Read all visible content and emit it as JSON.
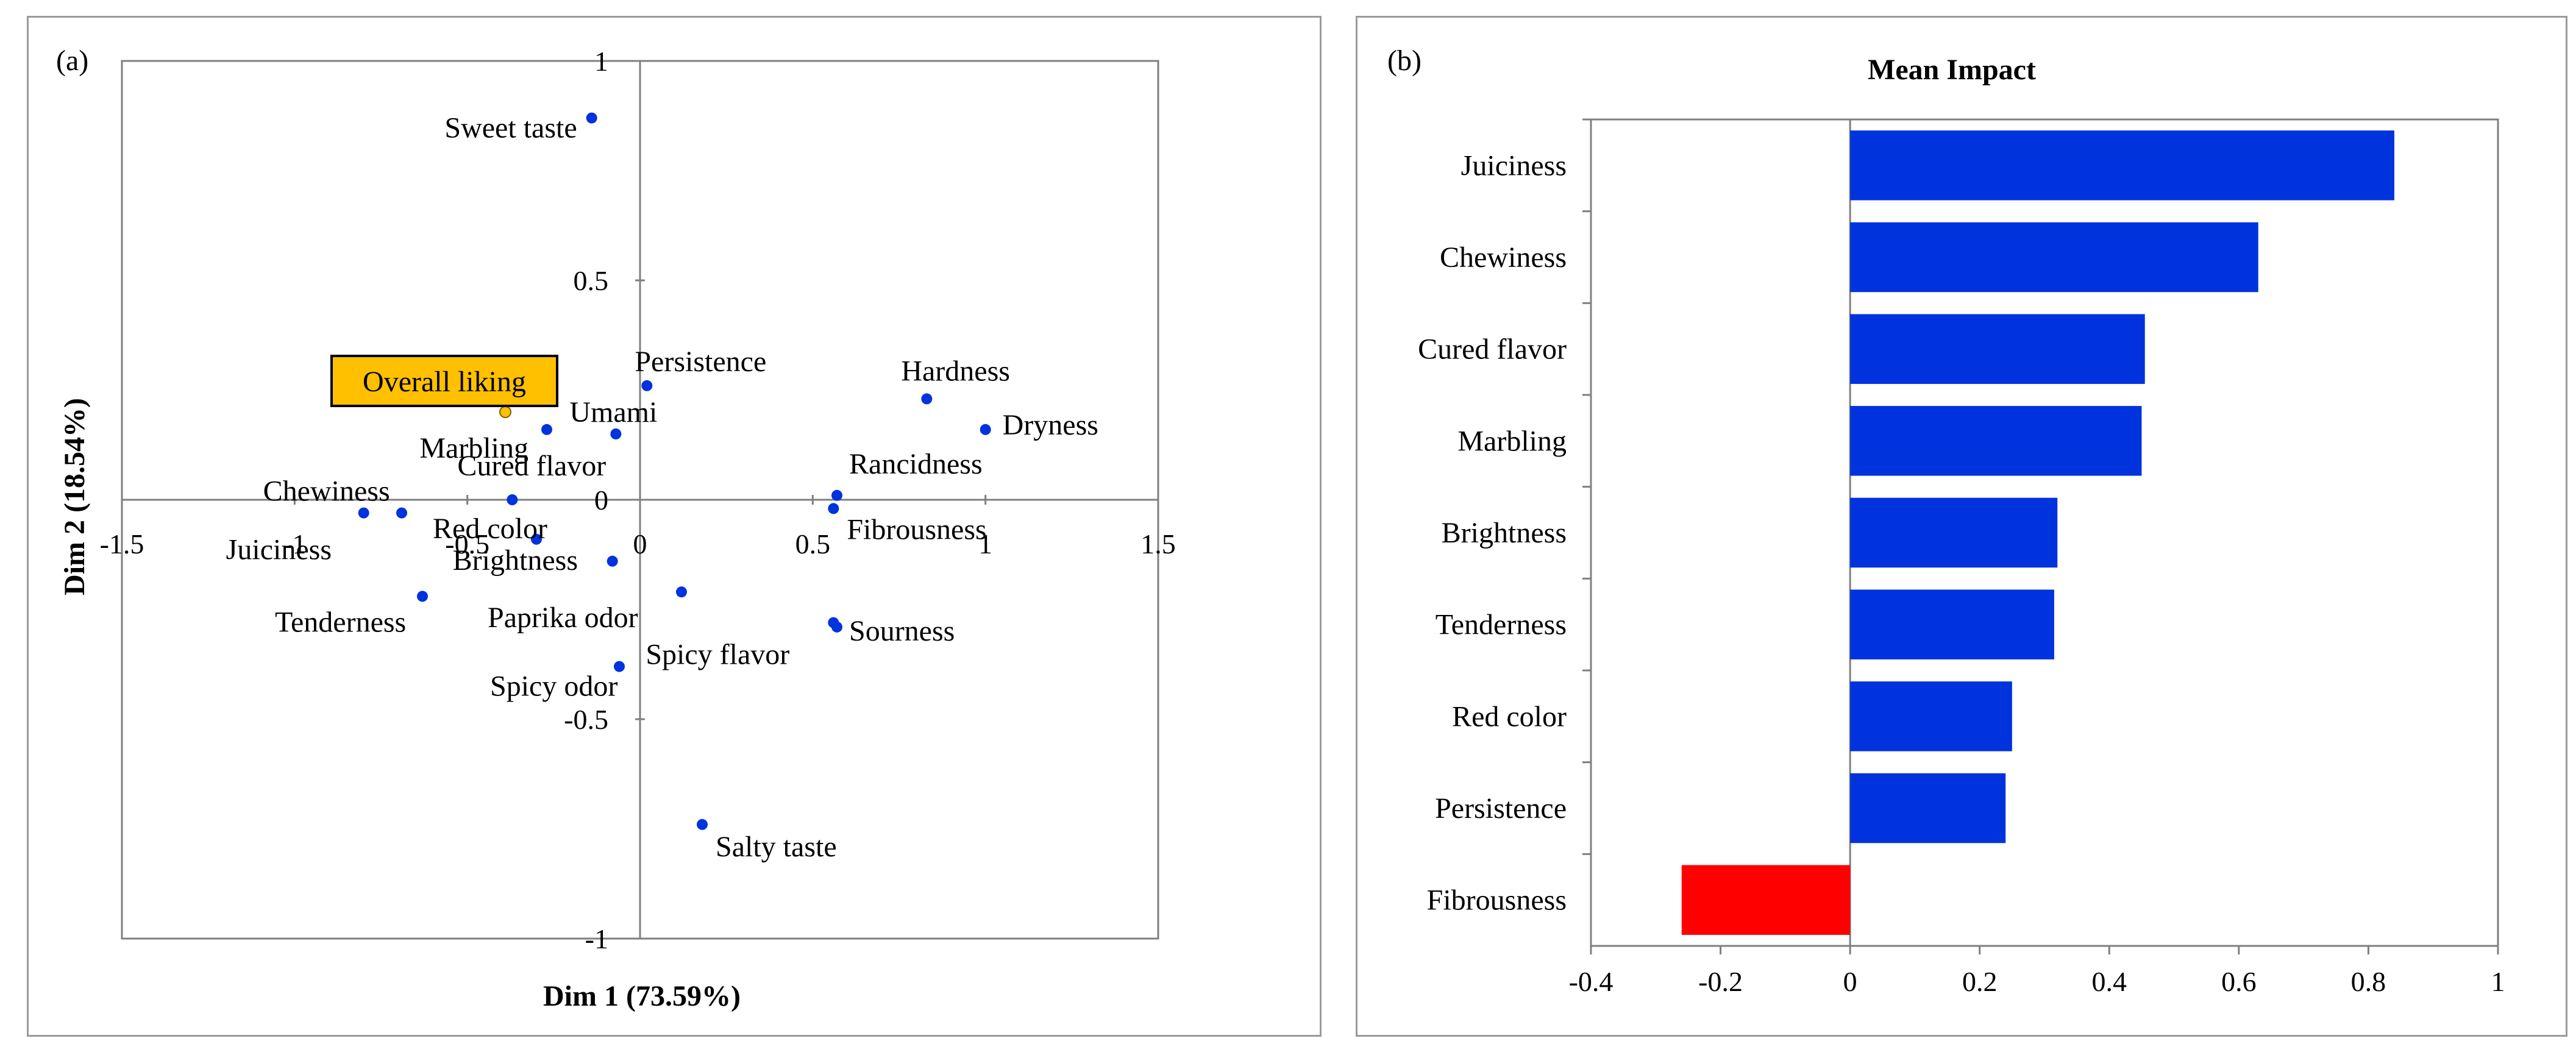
{
  "chart_data": [
    {
      "panel": "(a)",
      "type": "scatter",
      "title": "",
      "xlabel": "Dim 1 (73.59%)",
      "ylabel": "Dim 2 (18.54%)",
      "xlim": [
        -1.5,
        1.5
      ],
      "ylim": [
        -1,
        1
      ],
      "xticks": [
        "-1.5",
        "-1",
        "-0.5",
        "0",
        "0.5",
        "1",
        "1.5"
      ],
      "yticks": [
        "1",
        "0.5",
        "0",
        "-0.5",
        "-1"
      ],
      "grid": false,
      "highlight_label": "Overall liking",
      "highlight_color": "#FFC000",
      "point_color": "#0033DD",
      "points": [
        {
          "label": "Sweet taste",
          "x": -0.14,
          "y": 0.87
        },
        {
          "label": "Persistence",
          "x": 0.02,
          "y": 0.26
        },
        {
          "label": "Hardness",
          "x": 0.83,
          "y": 0.23
        },
        {
          "label": "Dryness",
          "x": 1.0,
          "y": 0.16
        },
        {
          "label": "Overall liking",
          "x": -0.39,
          "y": 0.2
        },
        {
          "label": "Umami",
          "x": -0.07,
          "y": 0.15
        },
        {
          "label": "Marbling",
          "x": -0.27,
          "y": 0.16
        },
        {
          "label": "Rancidness",
          "x": 0.57,
          "y": 0.01
        },
        {
          "label": "Fibrousness",
          "x": 0.56,
          "y": -0.02
        },
        {
          "label": "Chewiness",
          "x": -0.8,
          "y": -0.03
        },
        {
          "label": "Cured flavor",
          "x": -0.37,
          "y": 0.0
        },
        {
          "label": "Juiciness",
          "x": -0.69,
          "y": -0.03
        },
        {
          "label": "Red color",
          "x": -0.3,
          "y": -0.09
        },
        {
          "label": "Brightness",
          "x": -0.08,
          "y": -0.14
        },
        {
          "label": "Paprika odor",
          "x": 0.12,
          "y": -0.21
        },
        {
          "label": "Spicy flavor",
          "x": 0.56,
          "y": -0.28
        },
        {
          "label": "Sourness",
          "x": 0.57,
          "y": -0.29
        },
        {
          "label": "Tenderness",
          "x": -0.63,
          "y": -0.22
        },
        {
          "label": "Spicy odor",
          "x": -0.06,
          "y": -0.38
        },
        {
          "label": "Salty taste",
          "x": 0.18,
          "y": -0.74
        }
      ]
    },
    {
      "panel": "(b)",
      "type": "bar",
      "orientation": "horizontal",
      "title": "Mean Impact",
      "xlabel": "",
      "ylabel": "",
      "xlim": [
        -0.4,
        1
      ],
      "xticks": [
        "-0.4",
        "-0.2",
        "0",
        "0.2",
        "0.4",
        "0.6",
        "0.8",
        "1"
      ],
      "categories": [
        "Juiciness",
        "Chewiness",
        "Cured flavor",
        "Marbling",
        "Brightness",
        "Tenderness",
        "Red color",
        "Persistence",
        "Fibrousness"
      ],
      "values": [
        0.84,
        0.63,
        0.455,
        0.45,
        0.32,
        0.315,
        0.25,
        0.24,
        -0.26
      ],
      "positive_color": "#0033DD",
      "negative_color": "#FF0000"
    }
  ]
}
